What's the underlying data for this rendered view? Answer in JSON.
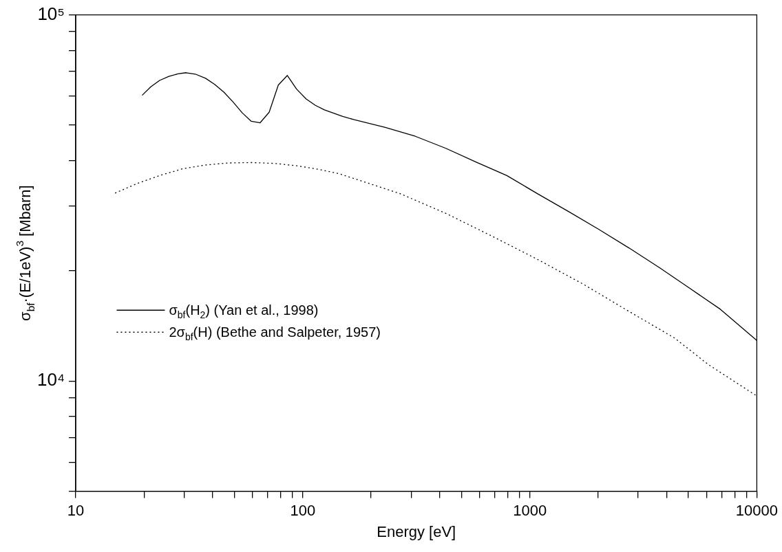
{
  "chart_data": {
    "type": "line",
    "xlabel": "Energy [eV]",
    "ylabel": "σ$_{bf}$·(E/1eV)$^{3}$ [Mbarn]",
    "log": "xy",
    "grid": false,
    "legend": "left",
    "marker": "none",
    "xlim": [
      10,
      10000
    ],
    "ylim": [
      5000,
      100000
    ],
    "xticks": [
      10,
      {
        "value": 20,
        "label": null
      },
      {
        "value": 30,
        "label": null
      },
      {
        "value": 40,
        "label": null
      },
      {
        "value": 50,
        "label": null
      },
      {
        "value": 60,
        "label": null
      },
      {
        "value": 70,
        "label": null
      },
      {
        "value": 80,
        "label": null
      },
      {
        "value": 90,
        "label": null
      },
      100,
      {
        "value": 200,
        "label": null
      },
      {
        "value": 300,
        "label": null
      },
      {
        "value": 400,
        "label": null
      },
      {
        "value": 500,
        "label": null
      },
      {
        "value": 600,
        "label": null
      },
      {
        "value": 700,
        "label": null
      },
      {
        "value": 800,
        "label": null
      },
      {
        "value": 900,
        "label": null
      },
      1000,
      {
        "value": 2000,
        "label": null
      },
      {
        "value": 3000,
        "label": null
      },
      {
        "value": 4000,
        "label": null
      },
      {
        "value": 5000,
        "label": null
      },
      {
        "value": 6000,
        "label": null
      },
      {
        "value": 7000,
        "label": null
      },
      {
        "value": 8000,
        "label": null
      },
      {
        "value": 9000,
        "label": null
      },
      10000
    ],
    "yticks": [
      {
        "value": 5000,
        "label": null
      },
      {
        "value": 6000,
        "label": null
      },
      {
        "value": 7000,
        "label": null
      },
      {
        "value": 8000,
        "label": null
      },
      {
        "value": 9000,
        "label": null
      },
      {
        "value": 10000,
        "label": "10⁴"
      },
      {
        "value": 20000,
        "label": null
      },
      {
        "value": 30000,
        "label": null
      },
      {
        "value": 40000,
        "label": null
      },
      {
        "value": 50000,
        "label": null
      },
      {
        "value": 60000,
        "label": null
      },
      {
        "value": 70000,
        "label": null
      },
      {
        "value": 80000,
        "label": null
      },
      {
        "value": 90000,
        "label": null
      },
      {
        "value": 100000,
        "label": "10⁵"
      }
    ],
    "series": [
      {
        "name": "σ$_{bf}$(H$_{2}$) (Yan et al., 1998)",
        "color": "#000000",
        "line_style": "solid",
        "x": [
          19.6,
          21.4,
          23.4,
          25.7,
          28.2,
          30.6,
          33.6,
          37.3,
          40.9,
          44.9,
          49.3,
          54.1,
          59.3,
          64.8,
          71.1,
          78,
          85.5,
          93.9,
          103.5,
          113.6,
          124.6,
          150,
          168.6,
          229.6,
          313,
          426.6,
          580.9,
          792,
          1079,
          1471,
          2004,
          2731,
          3721,
          5073,
          6911,
          10000
        ],
        "values": [
          60300,
          63600,
          66200,
          67900,
          69000,
          69500,
          68900,
          67100,
          64600,
          61500,
          57800,
          54000,
          51200,
          50700,
          54200,
          64300,
          68300,
          62700,
          58900,
          56600,
          55000,
          52800,
          51700,
          49300,
          46600,
          43200,
          39600,
          36400,
          32500,
          29100,
          26000,
          23100,
          20400,
          17900,
          15700,
          12900
        ]
      },
      {
        "name": "2σ$_{bf}$(H) (Bethe and Salpeter, 1957)",
        "color": "#000000",
        "line_style": "dotted",
        "x": [
          14.9,
          18.6,
          23.4,
          29.6,
          37.3,
          47,
          59.3,
          74.8,
          94.3,
          119,
          145,
          168.6,
          268,
          426.6,
          678.7,
          1079,
          1716,
          2731,
          4344,
          6105,
          10000
        ],
        "values": [
          32600,
          34600,
          36400,
          38000,
          38900,
          39400,
          39500,
          39300,
          38700,
          37800,
          36800,
          35700,
          32500,
          28700,
          24900,
          21500,
          18400,
          15500,
          13100,
          11100,
          9100
        ]
      }
    ]
  }
}
